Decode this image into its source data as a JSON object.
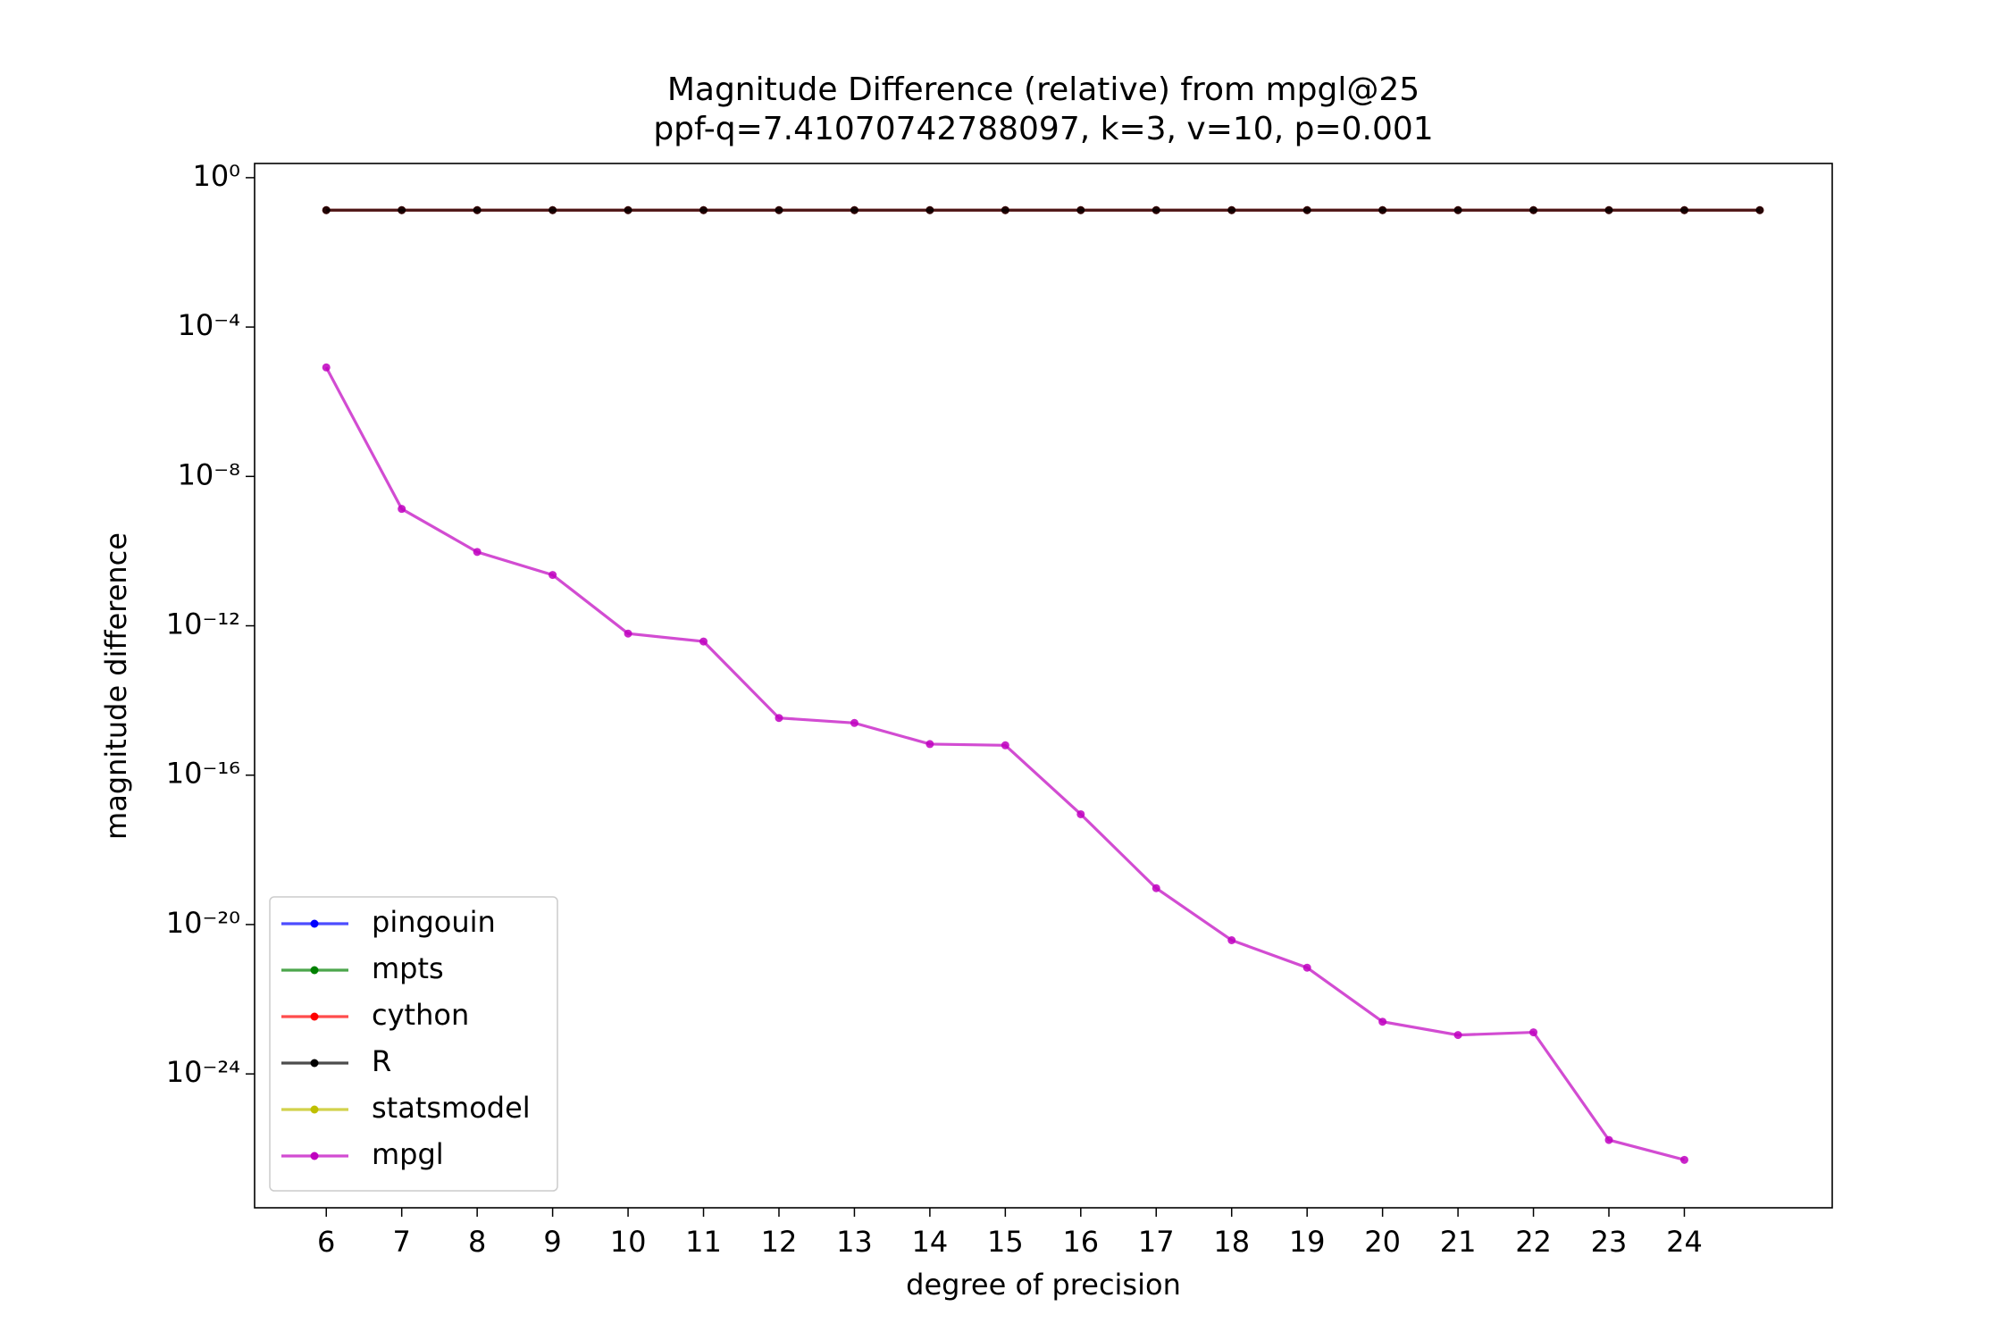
{
  "chart_data": {
    "type": "line",
    "title": "Magnitude Difference (relative) from mpgl@25",
    "subtitle": "ppf-q=7.41070742788097, k=3, v=10, p=0.001",
    "x_label": "degree of precision",
    "y_label": "magnitude difference",
    "x": [
      6,
      7,
      8,
      9,
      10,
      11,
      12,
      13,
      14,
      15,
      16,
      17,
      18,
      19,
      20,
      21,
      22,
      23,
      24,
      25
    ],
    "series": [
      {
        "name": "pingouin",
        "color": "#0000ff",
        "values": [
          null,
          null,
          null,
          null,
          null,
          null,
          null,
          null,
          null,
          null,
          null,
          null,
          null,
          null,
          null,
          null,
          null,
          null,
          null,
          null
        ]
      },
      {
        "name": "mpts",
        "color": "#008000",
        "values": [
          null,
          null,
          null,
          null,
          null,
          null,
          null,
          null,
          null,
          null,
          null,
          null,
          null,
          null,
          null,
          null,
          null,
          null,
          null,
          null
        ]
      },
      {
        "name": "cython",
        "color": "#ff0000",
        "values": [
          0.135,
          0.135,
          0.135,
          0.135,
          0.135,
          0.135,
          0.135,
          0.135,
          0.135,
          0.135,
          0.135,
          0.135,
          0.135,
          0.135,
          0.135,
          0.135,
          0.135,
          0.135,
          0.135,
          0.135
        ]
      },
      {
        "name": "R",
        "color": "#000000",
        "values": [
          0.135,
          0.135,
          0.135,
          0.135,
          0.135,
          0.135,
          0.135,
          0.135,
          0.135,
          0.135,
          0.135,
          0.135,
          0.135,
          0.135,
          0.135,
          0.135,
          0.135,
          0.135,
          0.135,
          0.135
        ]
      },
      {
        "name": "statsmodel",
        "color": "#bfbf00",
        "values": [
          null,
          null,
          null,
          null,
          null,
          null,
          null,
          null,
          null,
          null,
          null,
          null,
          null,
          null,
          null,
          null,
          null,
          null,
          null,
          null
        ]
      },
      {
        "name": "mpgl",
        "color": "#bf00bf",
        "values": [
          8.3e-06,
          1.35e-09,
          9.5e-11,
          2.3e-11,
          6.2e-13,
          3.8e-13,
          3.4e-15,
          2.5e-15,
          6.8e-16,
          6.3e-16,
          9e-18,
          9.4e-20,
          3.8e-21,
          7e-22,
          2.5e-23,
          1.1e-23,
          1.3e-23,
          1.7e-26,
          5e-27,
          null
        ]
      }
    ],
    "xlim": [
      5.05,
      25.96
    ],
    "xticks": [
      6,
      7,
      8,
      9,
      10,
      11,
      12,
      13,
      14,
      15,
      16,
      17,
      18,
      19,
      20,
      21,
      22,
      23,
      24
    ],
    "ylim": [
      2.4,
      2.6e-28
    ],
    "yscale": "log",
    "yticks": [
      {
        "value": 1,
        "label": "10⁰"
      },
      {
        "value": 0.0001,
        "label": "10⁻⁴"
      },
      {
        "value": 1e-08,
        "label": "10⁻⁸"
      },
      {
        "value": 1e-12,
        "label": "10⁻¹²"
      },
      {
        "value": 1e-16,
        "label": "10⁻¹⁶"
      },
      {
        "value": 1e-20,
        "label": "10⁻²⁰"
      },
      {
        "value": 1e-24,
        "label": "10⁻²⁴"
      }
    ],
    "grid": false,
    "legend": "lower left"
  }
}
